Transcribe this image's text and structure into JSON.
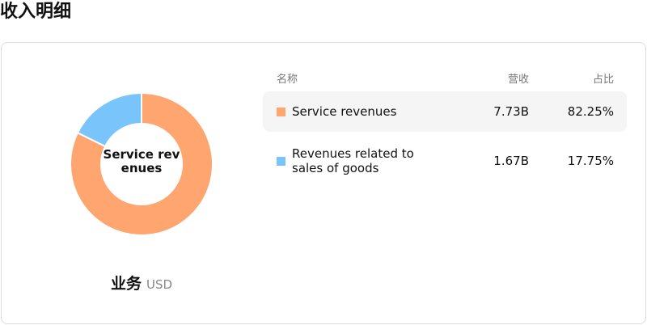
{
  "header": {
    "title": "收入明细"
  },
  "chart_data": {
    "type": "pie",
    "center_label": "Service revenues",
    "categories": [
      "Service revenues",
      "Revenues related to sales of goods"
    ],
    "values": [
      82.25,
      17.75
    ],
    "colors": [
      "#ffa570",
      "#79c5fb"
    ]
  },
  "footer": {
    "label": "业务",
    "unit": "USD"
  },
  "table": {
    "columns": [
      "名称",
      "营收",
      "占比"
    ],
    "rows": [
      [
        "Service revenues",
        "7.73B",
        "82.25%"
      ],
      [
        "Revenues related to sales of goods",
        "1.67B",
        "17.75%"
      ]
    ]
  }
}
